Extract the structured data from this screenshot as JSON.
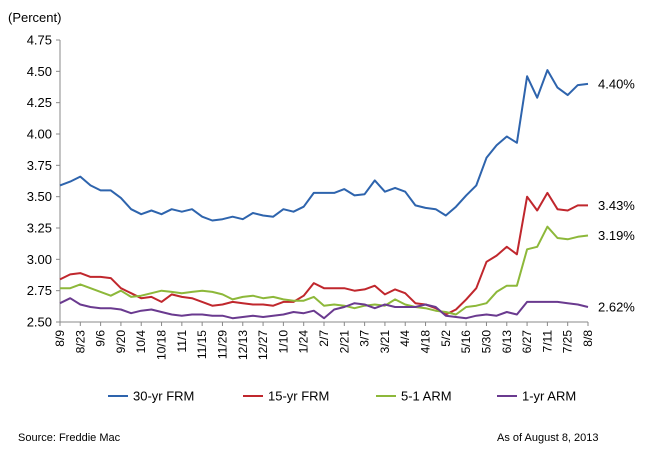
{
  "chart_data": {
    "type": "line",
    "ylabel": "(Percent)",
    "ylim": [
      2.5,
      4.75
    ],
    "yticks": [
      "4.75",
      "4.50",
      "4.25",
      "4.00",
      "3.75",
      "3.50",
      "3.25",
      "3.00",
      "2.75",
      "2.50"
    ],
    "ytick_values": [
      4.75,
      4.5,
      4.25,
      4.0,
      3.75,
      3.5,
      3.25,
      3.0,
      2.75,
      2.5
    ],
    "x_tick_labels": [
      "8/9",
      "8/23",
      "9/6",
      "9/20",
      "10/4",
      "10/18",
      "11/1",
      "11/15",
      "11/29",
      "12/13",
      "12/27",
      "1/10",
      "1/24",
      "2/7",
      "2/21",
      "3/7",
      "3/21",
      "4/4",
      "4/18",
      "5/2",
      "5/16",
      "5/30",
      "6/13",
      "6/27",
      "7/11",
      "7/25",
      "8/8"
    ],
    "grid": false,
    "legend_position": "bottom",
    "series": [
      {
        "name": "30-yr FRM",
        "color": "#2e64ad",
        "end_label": "4.40%",
        "values": [
          3.59,
          3.62,
          3.66,
          3.59,
          3.55,
          3.55,
          3.49,
          3.4,
          3.36,
          3.39,
          3.36,
          3.4,
          3.38,
          3.4,
          3.34,
          3.31,
          3.32,
          3.34,
          3.32,
          3.37,
          3.35,
          3.34,
          3.4,
          3.38,
          3.42,
          3.53,
          3.53,
          3.53,
          3.56,
          3.51,
          3.52,
          3.63,
          3.54,
          3.57,
          3.54,
          3.43,
          3.41,
          3.4,
          3.35,
          3.42,
          3.51,
          3.59,
          3.81,
          3.91,
          3.98,
          3.93,
          4.46,
          4.29,
          4.51,
          4.37,
          4.31,
          4.39,
          4.4
        ]
      },
      {
        "name": "15-yr FRM",
        "color": "#c0272d",
        "end_label": "3.43%",
        "values": [
          2.84,
          2.88,
          2.89,
          2.86,
          2.86,
          2.85,
          2.77,
          2.73,
          2.69,
          2.7,
          2.66,
          2.72,
          2.7,
          2.69,
          2.66,
          2.63,
          2.64,
          2.66,
          2.65,
          2.64,
          2.64,
          2.63,
          2.66,
          2.66,
          2.71,
          2.81,
          2.77,
          2.77,
          2.77,
          2.75,
          2.76,
          2.79,
          2.72,
          2.76,
          2.73,
          2.65,
          2.64,
          2.61,
          2.56,
          2.6,
          2.68,
          2.77,
          2.98,
          3.03,
          3.1,
          3.04,
          3.5,
          3.39,
          3.53,
          3.4,
          3.39,
          3.43,
          3.43
        ]
      },
      {
        "name": "5-1 ARM",
        "color": "#8db83a",
        "end_label": "3.19%",
        "values": [
          2.77,
          2.77,
          2.8,
          2.77,
          2.74,
          2.71,
          2.75,
          2.7,
          2.71,
          2.73,
          2.75,
          2.74,
          2.73,
          2.74,
          2.75,
          2.74,
          2.72,
          2.68,
          2.7,
          2.71,
          2.69,
          2.7,
          2.68,
          2.67,
          2.67,
          2.7,
          2.63,
          2.64,
          2.63,
          2.61,
          2.63,
          2.64,
          2.63,
          2.68,
          2.64,
          2.62,
          2.61,
          2.59,
          2.58,
          2.56,
          2.62,
          2.63,
          2.65,
          2.74,
          2.79,
          2.79,
          3.08,
          3.1,
          3.26,
          3.17,
          3.16,
          3.18,
          3.19
        ]
      },
      {
        "name": "1-yr ARM",
        "color": "#6a3a8f",
        "end_label": "2.62%",
        "values": [
          2.65,
          2.69,
          2.64,
          2.62,
          2.61,
          2.61,
          2.6,
          2.57,
          2.59,
          2.6,
          2.58,
          2.56,
          2.55,
          2.56,
          2.56,
          2.55,
          2.55,
          2.53,
          2.54,
          2.55,
          2.54,
          2.55,
          2.56,
          2.58,
          2.57,
          2.59,
          2.53,
          2.6,
          2.62,
          2.65,
          2.64,
          2.61,
          2.64,
          2.62,
          2.62,
          2.62,
          2.64,
          2.62,
          2.55,
          2.54,
          2.53,
          2.55,
          2.56,
          2.55,
          2.58,
          2.56,
          2.66,
          2.66,
          2.66,
          2.66,
          2.65,
          2.64,
          2.62
        ]
      }
    ]
  },
  "footer": {
    "source": "Source: Freddie Mac",
    "asof": "As of August 8, 2013"
  }
}
